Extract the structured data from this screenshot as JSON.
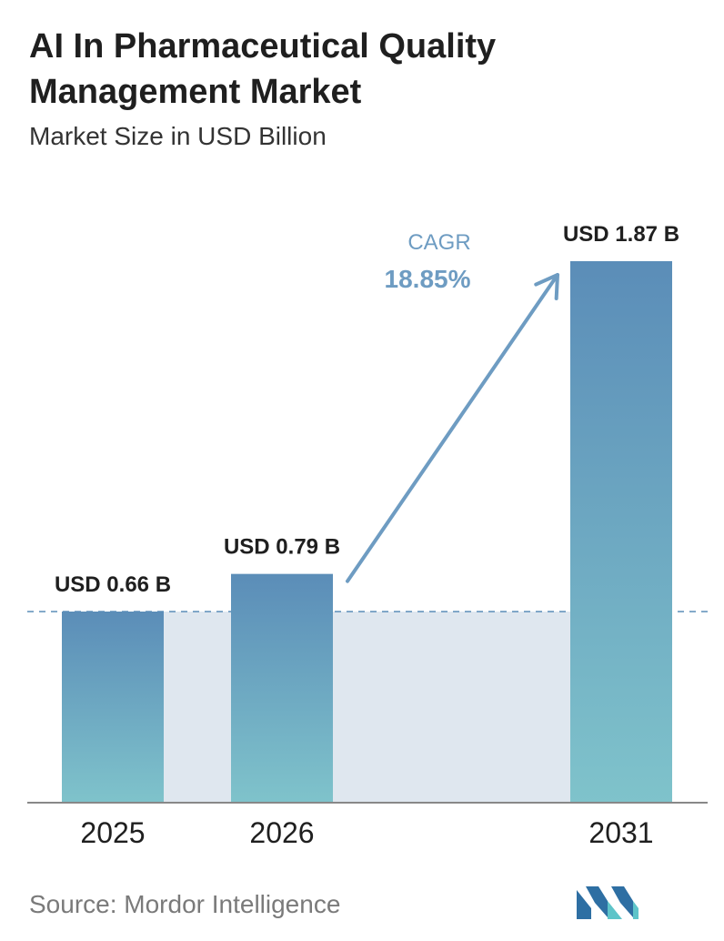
{
  "header": {
    "title": "AI In Pharmaceutical Quality Management Market",
    "subtitle": "Market Size in USD Billion"
  },
  "chart_data": {
    "type": "bar",
    "categories": [
      "2025",
      "2026",
      "2031"
    ],
    "values": [
      0.66,
      0.79,
      1.87
    ],
    "value_labels": [
      "USD 0.66 B",
      "USD 0.79 B",
      "USD 1.87 B"
    ],
    "title": "AI In Pharmaceutical Quality Management Market",
    "subtitle": "Market Size in USD Billion",
    "xlabel": "",
    "ylabel": "",
    "ylim": [
      0,
      1.87
    ],
    "grid": false,
    "reference_line_value": 0.66,
    "annotation": {
      "label": "CAGR",
      "value": "18.85%"
    },
    "colors": {
      "bar_top": "#5b8db8",
      "bar_bottom": "#7fc3cb",
      "band": "#dfe7ef",
      "arrow": "#6e9cc2",
      "reference_line": "#5b8db8",
      "baseline": "#888888"
    }
  },
  "footer": {
    "source": "Source: Mordor Intelligence",
    "logo_colors": [
      "#2e6fa3",
      "#5ec4c9"
    ]
  }
}
